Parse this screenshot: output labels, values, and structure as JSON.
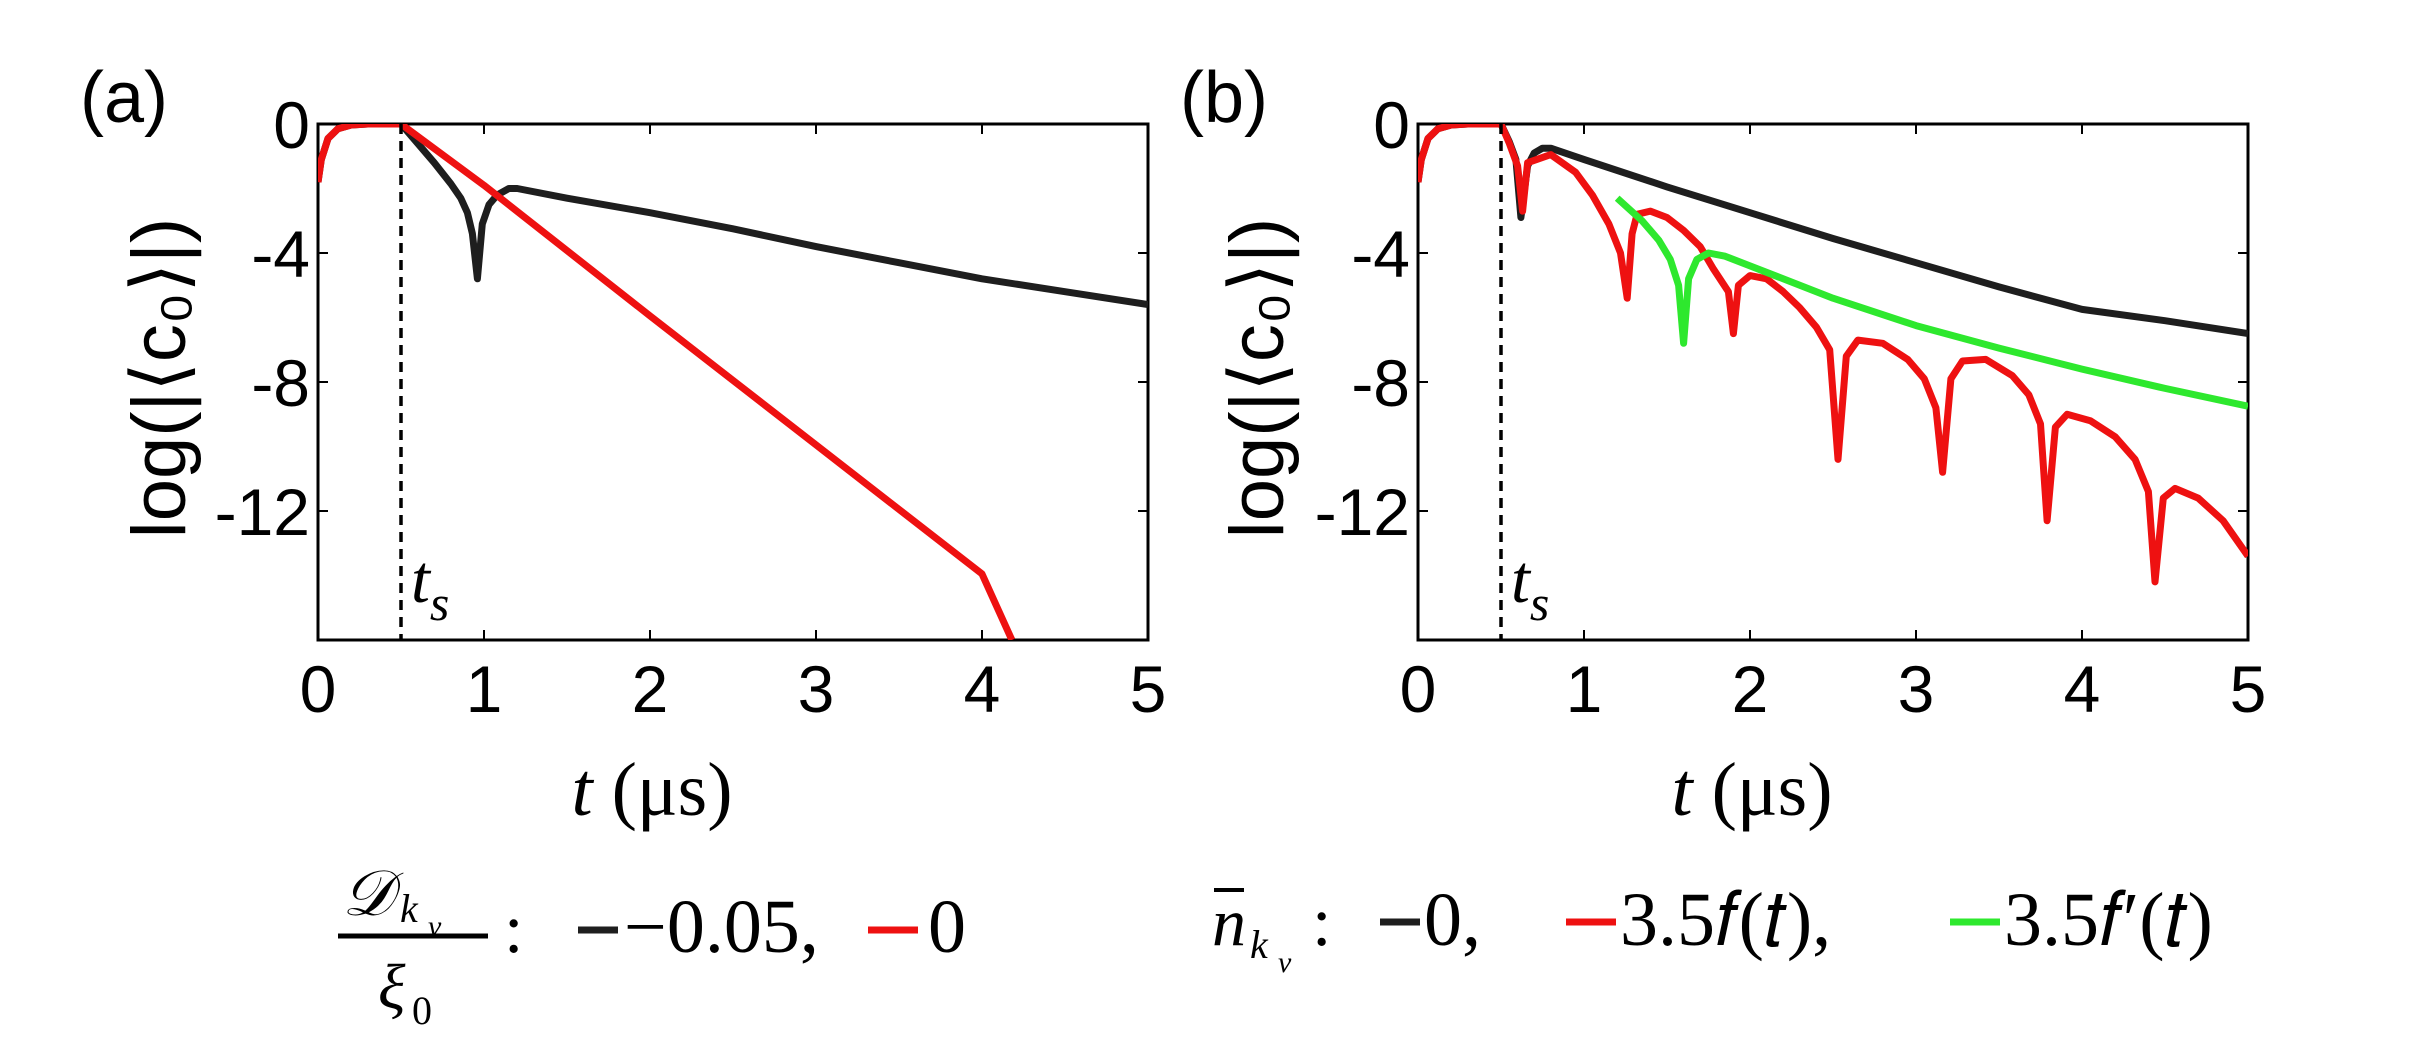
{
  "chart_data": [
    {
      "type": "line",
      "panel_label": "(a)",
      "xlabel_var": "t",
      "xlabel_unit": "(μs)",
      "ylabel": "log(|⟨c₀⟩|)",
      "xlim": [
        0,
        5
      ],
      "ylim": [
        -16,
        0
      ],
      "xticks": [
        0,
        1,
        2,
        3,
        4,
        5
      ],
      "yticks": [
        0,
        -4,
        -8,
        -12
      ],
      "ts": {
        "x": 0.5,
        "label": "t",
        "sub": "s"
      },
      "legend": {
        "lhs_num": "𝒟",
        "lhs_sub": "k⃗",
        "lhs_subsub": "v",
        "lhs_den": "ξ",
        "lhs_den_sub": "0",
        "colon": ":",
        "entries": [
          "−0.05,",
          "0"
        ]
      },
      "series": [
        {
          "name": "-0.05",
          "color": "#1e1e1e",
          "x": [
            0,
            0.02,
            0.06,
            0.12,
            0.2,
            0.3,
            0.4,
            0.5,
            0.6,
            0.7,
            0.8,
            0.86,
            0.9,
            0.93,
            0.96,
            0.99,
            1.03,
            1.08,
            1.15,
            1.2,
            1.5,
            2,
            2.5,
            3,
            3.5,
            4,
            4.5,
            5
          ],
          "y": [
            -1.8,
            -1.1,
            -0.45,
            -0.15,
            -0.03,
            0,
            0,
            0,
            -0.6,
            -1.2,
            -1.85,
            -2.3,
            -2.75,
            -3.4,
            -4.8,
            -3.1,
            -2.5,
            -2.2,
            -2.0,
            -2.0,
            -2.3,
            -2.75,
            -3.25,
            -3.8,
            -4.3,
            -4.8,
            -5.2,
            -5.6
          ]
        },
        {
          "name": "0",
          "color": "#ee1111",
          "x": [
            0,
            0.02,
            0.06,
            0.12,
            0.2,
            0.3,
            0.4,
            0.5,
            1,
            2,
            3,
            4,
            4.18
          ],
          "y": [
            -1.8,
            -1.1,
            -0.45,
            -0.15,
            -0.03,
            0,
            0,
            0,
            -1.9,
            -5.95,
            -9.95,
            -13.95,
            -16
          ]
        }
      ]
    },
    {
      "type": "line",
      "panel_label": "(b)",
      "xlabel_var": "t",
      "xlabel_unit": "(μs)",
      "ylabel": "log(|⟨c₀⟩|)",
      "xlim": [
        0,
        5
      ],
      "ylim": [
        -16,
        0
      ],
      "xticks": [
        0,
        1,
        2,
        3,
        4,
        5
      ],
      "yticks": [
        0,
        -4,
        -8,
        -12
      ],
      "ts": {
        "x": 0.5,
        "label": "t",
        "sub": "s"
      },
      "legend": {
        "lhs_main": "n",
        "lhs_sub": "k⃗",
        "lhs_subsub": "v",
        "colon": ":",
        "entries": [
          "0,",
          "3.5𝑓(𝑡),",
          "3.5𝑓′(𝑡)"
        ]
      },
      "series": [
        {
          "name": "0",
          "color": "#1e1e1e",
          "x": [
            0,
            0.02,
            0.06,
            0.12,
            0.2,
            0.3,
            0.4,
            0.5,
            0.55,
            0.59,
            0.62,
            0.66,
            0.7,
            0.75,
            0.8,
            1,
            1.5,
            2,
            2.5,
            3,
            3.5,
            4,
            4.5,
            5
          ],
          "y": [
            -1.8,
            -1.1,
            -0.45,
            -0.15,
            -0.03,
            0,
            0,
            0,
            -0.55,
            -1.1,
            -2.9,
            -1.3,
            -0.9,
            -0.75,
            -0.75,
            -1.1,
            -1.95,
            -2.75,
            -3.55,
            -4.3,
            -5.05,
            -5.75,
            -6.1,
            -6.5
          ]
        },
        {
          "name": "3.5f(t)",
          "color": "#ee1111",
          "x": [
            0,
            0.02,
            0.06,
            0.12,
            0.2,
            0.3,
            0.4,
            0.5,
            0.55,
            0.6,
            0.63,
            0.66,
            0.8,
            0.95,
            1.05,
            1.15,
            1.22,
            1.26,
            1.29,
            1.32,
            1.4,
            1.5,
            1.6,
            1.7,
            1.78,
            1.87,
            1.9,
            1.93,
            2.0,
            2.1,
            2.2,
            2.3,
            2.4,
            2.48,
            2.53,
            2.58,
            2.65,
            2.8,
            2.95,
            3.05,
            3.12,
            3.16,
            3.21,
            3.28,
            3.42,
            3.58,
            3.68,
            3.75,
            3.79,
            3.84,
            3.91,
            4.05,
            4.2,
            4.32,
            4.4,
            4.44,
            4.49,
            4.56,
            4.7,
            4.85,
            5
          ],
          "y": [
            -1.8,
            -1.1,
            -0.45,
            -0.15,
            -0.03,
            0,
            0,
            0,
            -0.6,
            -1.3,
            -2.7,
            -1.2,
            -0.95,
            -1.5,
            -2.2,
            -3.1,
            -4.0,
            -5.4,
            -3.4,
            -2.8,
            -2.7,
            -2.9,
            -3.3,
            -3.8,
            -4.5,
            -5.2,
            -6.5,
            -5.0,
            -4.7,
            -4.8,
            -5.2,
            -5.7,
            -6.3,
            -7.0,
            -10.4,
            -7.2,
            -6.7,
            -6.8,
            -7.3,
            -7.9,
            -8.8,
            -10.8,
            -7.9,
            -7.35,
            -7.3,
            -7.8,
            -8.4,
            -9.3,
            -12.3,
            -9.4,
            -9.0,
            -9.2,
            -9.7,
            -10.4,
            -11.4,
            -14.2,
            -11.6,
            -11.3,
            -11.6,
            -12.3,
            -13.4
          ]
        },
        {
          "name": "3.5f'(t)",
          "color": "#2ee82e",
          "x": [
            1.2,
            1.35,
            1.45,
            1.52,
            1.57,
            1.6,
            1.63,
            1.68,
            1.75,
            1.85,
            2,
            2.5,
            3,
            3.5,
            4,
            4.5,
            5
          ],
          "y": [
            -2.3,
            -3.0,
            -3.6,
            -4.2,
            -5.0,
            -6.8,
            -4.8,
            -4.2,
            -4.0,
            -4.1,
            -4.4,
            -5.4,
            -6.25,
            -6.95,
            -7.6,
            -8.2,
            -8.75
          ]
        }
      ]
    }
  ]
}
